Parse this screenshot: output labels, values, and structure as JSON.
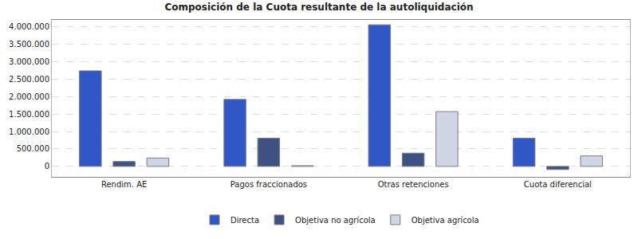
{
  "chart_data": {
    "type": "bar",
    "title": "Composición de la Cuota resultante de la autoliquidación",
    "categories": [
      "Rendim. AE",
      "Pagos fraccionados",
      "Otras retenciones",
      "Cuota diferencial"
    ],
    "series": [
      {
        "name": "Directa",
        "color": "#2f58c6",
        "values": [
          2740000,
          1920000,
          4060000,
          810000
        ]
      },
      {
        "name": "Objetiva no agrícola",
        "color": "#3d5282",
        "values": [
          140000,
          810000,
          380000,
          -90000
        ]
      },
      {
        "name": "Objetiva agrícola",
        "color": "#d0d5e8",
        "values": [
          240000,
          20000,
          1570000,
          300000
        ]
      }
    ],
    "ylim": [
      -300000,
      4200000
    ],
    "yticks": [
      0,
      {
        "value": 500000,
        "label": "500.000"
      },
      {
        "value": 1000000,
        "label": "1.000.000"
      },
      {
        "value": 1500000,
        "label": "1.500.000"
      },
      {
        "value": 2000000,
        "label": "2.000.000"
      },
      {
        "value": 2500000,
        "label": "2.500.000"
      },
      {
        "value": 3000000,
        "label": "3.000.000"
      },
      {
        "value": 3500000,
        "label": "3.500.000"
      },
      {
        "value": 4000000,
        "label": "4.000.000"
      }
    ],
    "grid": true,
    "legend": "bottom"
  }
}
